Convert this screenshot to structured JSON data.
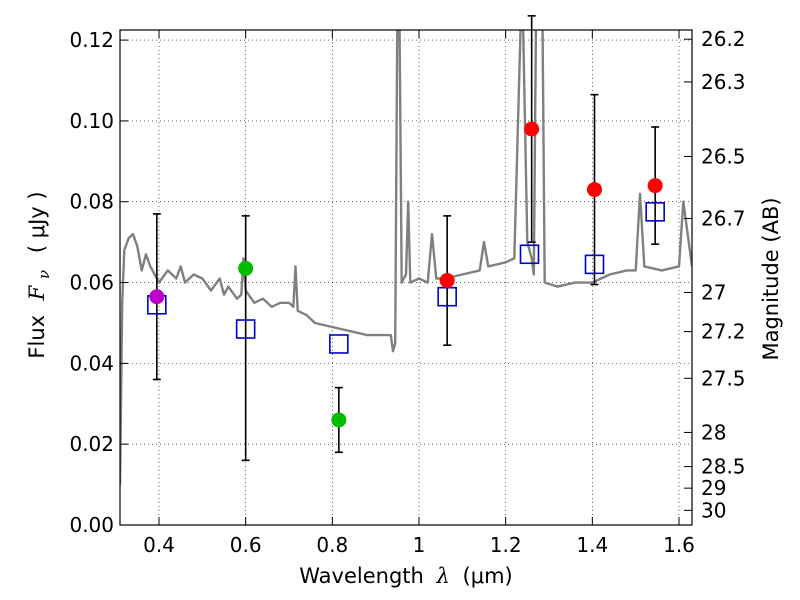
{
  "chart_data": {
    "type": "scatter",
    "xlabel_prefix": "Wavelength",
    "xlabel_symbol": "λ",
    "xlabel_unit": "(μm)",
    "ylabel_prefix": "Flux",
    "ylabel_symbol": "F",
    "ylabel_subscript": "ν",
    "ylabel_unit": "( μJy )",
    "y2label": "Magnitude (AB)",
    "xlim": [
      0.31,
      1.63
    ],
    "ylim": [
      0.0,
      0.1225
    ],
    "grid": true,
    "x_ticks": [
      0.4,
      0.6,
      0.8,
      1.0,
      1.2,
      1.4,
      1.6
    ],
    "x_tick_labels": [
      "0.4",
      "0.6",
      "0.8",
      "1",
      "1.2",
      "1.4",
      "1.6"
    ],
    "y_ticks": [
      0.0,
      0.02,
      0.04,
      0.06,
      0.08,
      0.1,
      0.12
    ],
    "y_tick_labels": [
      "0.00",
      "0.02",
      "0.04",
      "0.06",
      "0.08",
      "0.10",
      "0.12"
    ],
    "y2_ticks": [
      26.2,
      26.3,
      26.5,
      26.7,
      27,
      27.2,
      27.5,
      28,
      28.5,
      29,
      30
    ],
    "y2_tick_labels": [
      "26.2",
      "26.3",
      "26.5",
      "26.7",
      "27",
      "27.2",
      "27.5",
      "28",
      "28.5",
      "29",
      "30"
    ],
    "colors": {
      "model": "#808080",
      "model_photometry": "#0000cc",
      "error_bar": "#000000"
    },
    "series": [
      {
        "name": "model_spectrum",
        "kind": "line",
        "color": "#808080",
        "points": [
          [
            0.31,
            0.01
          ],
          [
            0.315,
            0.055
          ],
          [
            0.32,
            0.068
          ],
          [
            0.33,
            0.071
          ],
          [
            0.34,
            0.072
          ],
          [
            0.35,
            0.069
          ],
          [
            0.36,
            0.063
          ],
          [
            0.37,
            0.067
          ],
          [
            0.38,
            0.064
          ],
          [
            0.39,
            0.062
          ],
          [
            0.4,
            0.06
          ],
          [
            0.42,
            0.063
          ],
          [
            0.44,
            0.061
          ],
          [
            0.45,
            0.064
          ],
          [
            0.46,
            0.06
          ],
          [
            0.48,
            0.062
          ],
          [
            0.5,
            0.061
          ],
          [
            0.52,
            0.058
          ],
          [
            0.54,
            0.061
          ],
          [
            0.55,
            0.057
          ],
          [
            0.56,
            0.059
          ],
          [
            0.58,
            0.056
          ],
          [
            0.59,
            0.057
          ],
          [
            0.595,
            0.066
          ],
          [
            0.6,
            0.058
          ],
          [
            0.62,
            0.055
          ],
          [
            0.64,
            0.056
          ],
          [
            0.66,
            0.054
          ],
          [
            0.68,
            0.055
          ],
          [
            0.7,
            0.055
          ],
          [
            0.71,
            0.054
          ],
          [
            0.715,
            0.064
          ],
          [
            0.72,
            0.053
          ],
          [
            0.74,
            0.052
          ],
          [
            0.76,
            0.05
          ],
          [
            0.8,
            0.049
          ],
          [
            0.84,
            0.048
          ],
          [
            0.88,
            0.047
          ],
          [
            0.92,
            0.047
          ],
          [
            0.935,
            0.047
          ],
          [
            0.94,
            0.043
          ],
          [
            0.945,
            0.045
          ],
          [
            0.95,
            0.125
          ],
          [
            0.955,
            0.125
          ],
          [
            0.96,
            0.06
          ],
          [
            0.97,
            0.062
          ],
          [
            0.975,
            0.08
          ],
          [
            0.98,
            0.06
          ],
          [
            1.0,
            0.061
          ],
          [
            1.02,
            0.06
          ],
          [
            1.03,
            0.072
          ],
          [
            1.04,
            0.061
          ],
          [
            1.06,
            0.061
          ],
          [
            1.1,
            0.062
          ],
          [
            1.14,
            0.063
          ],
          [
            1.15,
            0.07
          ],
          [
            1.16,
            0.064
          ],
          [
            1.2,
            0.065
          ],
          [
            1.22,
            0.066
          ],
          [
            1.235,
            0.125
          ],
          [
            1.24,
            0.125
          ],
          [
            1.25,
            0.07
          ],
          [
            1.26,
            0.066
          ],
          [
            1.265,
            0.062
          ],
          [
            1.27,
            0.125
          ],
          [
            1.285,
            0.125
          ],
          [
            1.29,
            0.06
          ],
          [
            1.32,
            0.059
          ],
          [
            1.36,
            0.06
          ],
          [
            1.4,
            0.06
          ],
          [
            1.44,
            0.062
          ],
          [
            1.48,
            0.063
          ],
          [
            1.5,
            0.063
          ],
          [
            1.51,
            0.082
          ],
          [
            1.52,
            0.064
          ],
          [
            1.56,
            0.063
          ],
          [
            1.6,
            0.064
          ],
          [
            1.61,
            0.08
          ],
          [
            1.62,
            0.072
          ],
          [
            1.63,
            0.064
          ]
        ]
      },
      {
        "name": "model_photometry",
        "kind": "marker",
        "marker": "open_square",
        "color": "#0000cc",
        "points": [
          [
            0.395,
            0.0545
          ],
          [
            0.6,
            0.0485
          ],
          [
            0.815,
            0.0448
          ],
          [
            1.065,
            0.0565
          ],
          [
            1.255,
            0.067
          ],
          [
            1.405,
            0.0645
          ],
          [
            1.545,
            0.0775
          ]
        ]
      },
      {
        "name": "observed_optical",
        "kind": "marker",
        "marker": "filled_circle",
        "points": [
          {
            "x": 0.395,
            "y": 0.0565,
            "err_low": 0.0205,
            "err_high": 0.0205,
            "color": "#bb00cc"
          },
          {
            "x": 0.6,
            "y": 0.0635,
            "err_low": 0.0475,
            "err_high": 0.013,
            "color": "#00bb00"
          },
          {
            "x": 0.815,
            "y": 0.026,
            "err_low": 0.008,
            "err_high": 0.008,
            "color": "#00bb00"
          }
        ]
      },
      {
        "name": "observed_infrared",
        "kind": "marker",
        "marker": "filled_circle",
        "points": [
          {
            "x": 1.065,
            "y": 0.0605,
            "err_low": 0.016,
            "err_high": 0.016,
            "color": "#ff0000"
          },
          {
            "x": 1.26,
            "y": 0.098,
            "err_low": 0.028,
            "err_high": 0.028,
            "color": "#ff0000"
          },
          {
            "x": 1.405,
            "y": 0.083,
            "err_low": 0.0235,
            "err_high": 0.0235,
            "color": "#ff0000"
          },
          {
            "x": 1.545,
            "y": 0.084,
            "err_low": 0.0145,
            "err_high": 0.0145,
            "color": "#ff0000"
          }
        ]
      }
    ]
  }
}
